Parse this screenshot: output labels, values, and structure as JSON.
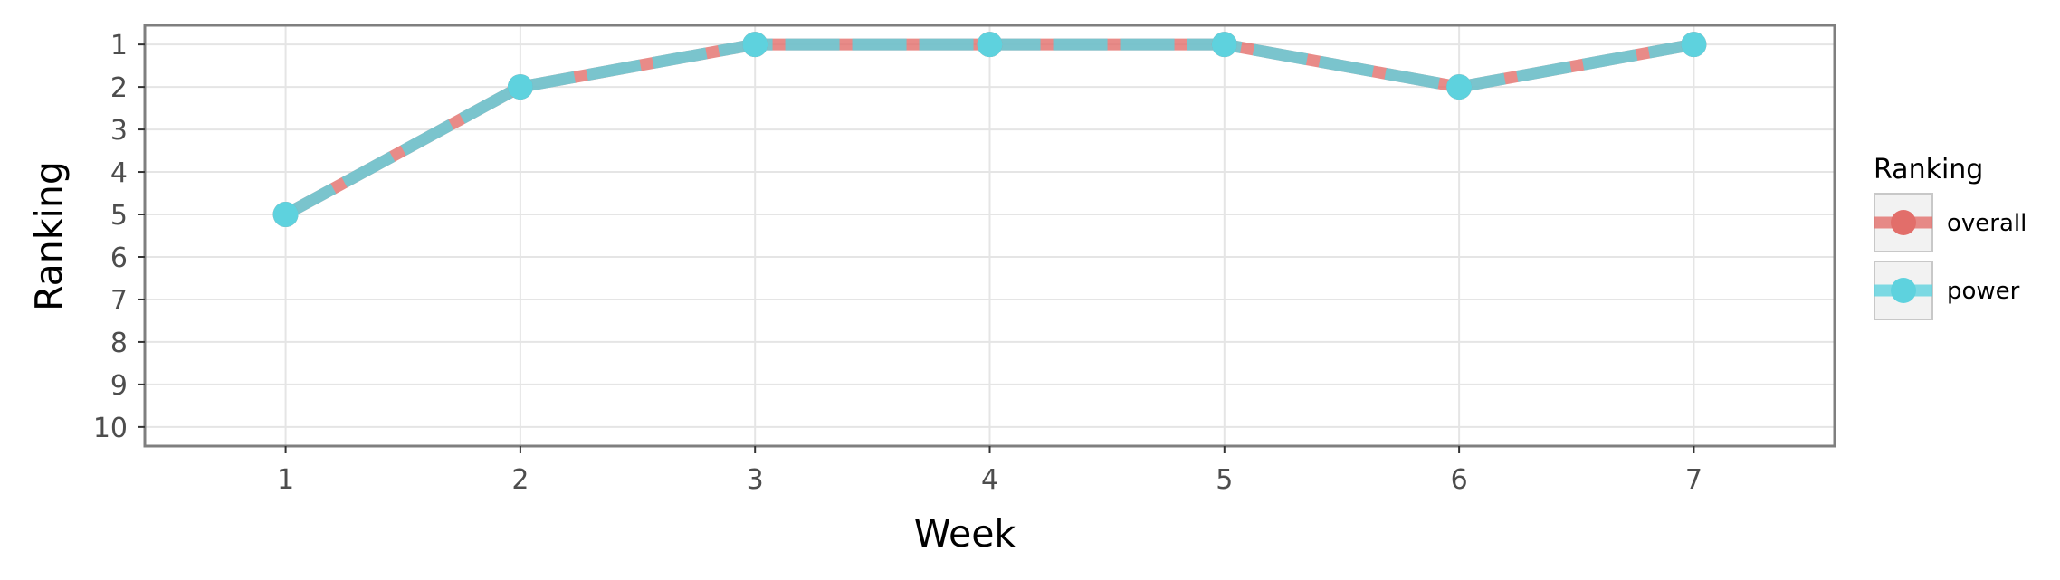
{
  "chart_data": {
    "type": "line",
    "x": [
      1,
      2,
      3,
      4,
      5,
      6,
      7
    ],
    "x_ticks": [
      1,
      2,
      3,
      4,
      5,
      6,
      7
    ],
    "y_ticks": [
      1,
      2,
      3,
      4,
      5,
      6,
      7,
      8,
      9,
      10
    ],
    "xlim": [
      0.4,
      7.6
    ],
    "ylim": [
      10.45,
      0.55
    ],
    "y_reversed": true,
    "xlabel": "Week",
    "ylabel": "Ranking",
    "grid": true,
    "legend": {
      "title": "Ranking",
      "position": "right"
    },
    "series": [
      {
        "name": "overall",
        "values": [
          5,
          2,
          1,
          1,
          1,
          2,
          1
        ],
        "color": "#E26E6A"
      },
      {
        "name": "power",
        "values": [
          5,
          2,
          1,
          1,
          1,
          2,
          1
        ],
        "color": "#5ED2DE"
      }
    ]
  }
}
